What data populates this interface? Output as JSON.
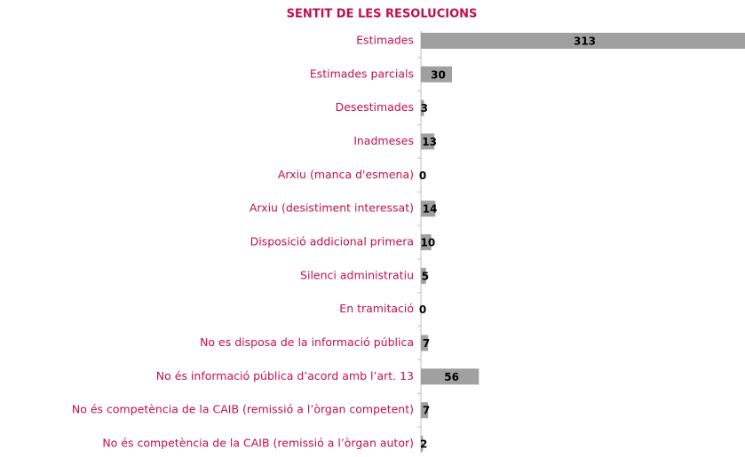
{
  "chart_data": {
    "type": "bar",
    "orientation": "horizontal",
    "title": "SENTIT DE LES RESOLUCIONS",
    "categories": [
      "Estimades",
      "Estimades parcials",
      "Desestimades",
      "Inadmeses",
      "Arxiu (manca d'esmena)",
      "Arxiu (desistiment interessat)",
      "Disposició addicional primera",
      "Silenci administratiu",
      "En tramitació",
      "No es disposa de la informació pública",
      "No és informació pública d’acord amb l’art. 13",
      "No és competència de la CAIB (remissió a l’òrgan competent)",
      "No és competència de la CAIB (remissió a l’òrgan autor)"
    ],
    "values": [
      313,
      30,
      3,
      13,
      0,
      14,
      10,
      5,
      0,
      7,
      56,
      7,
      2
    ],
    "color": "#a0a0a0"
  }
}
